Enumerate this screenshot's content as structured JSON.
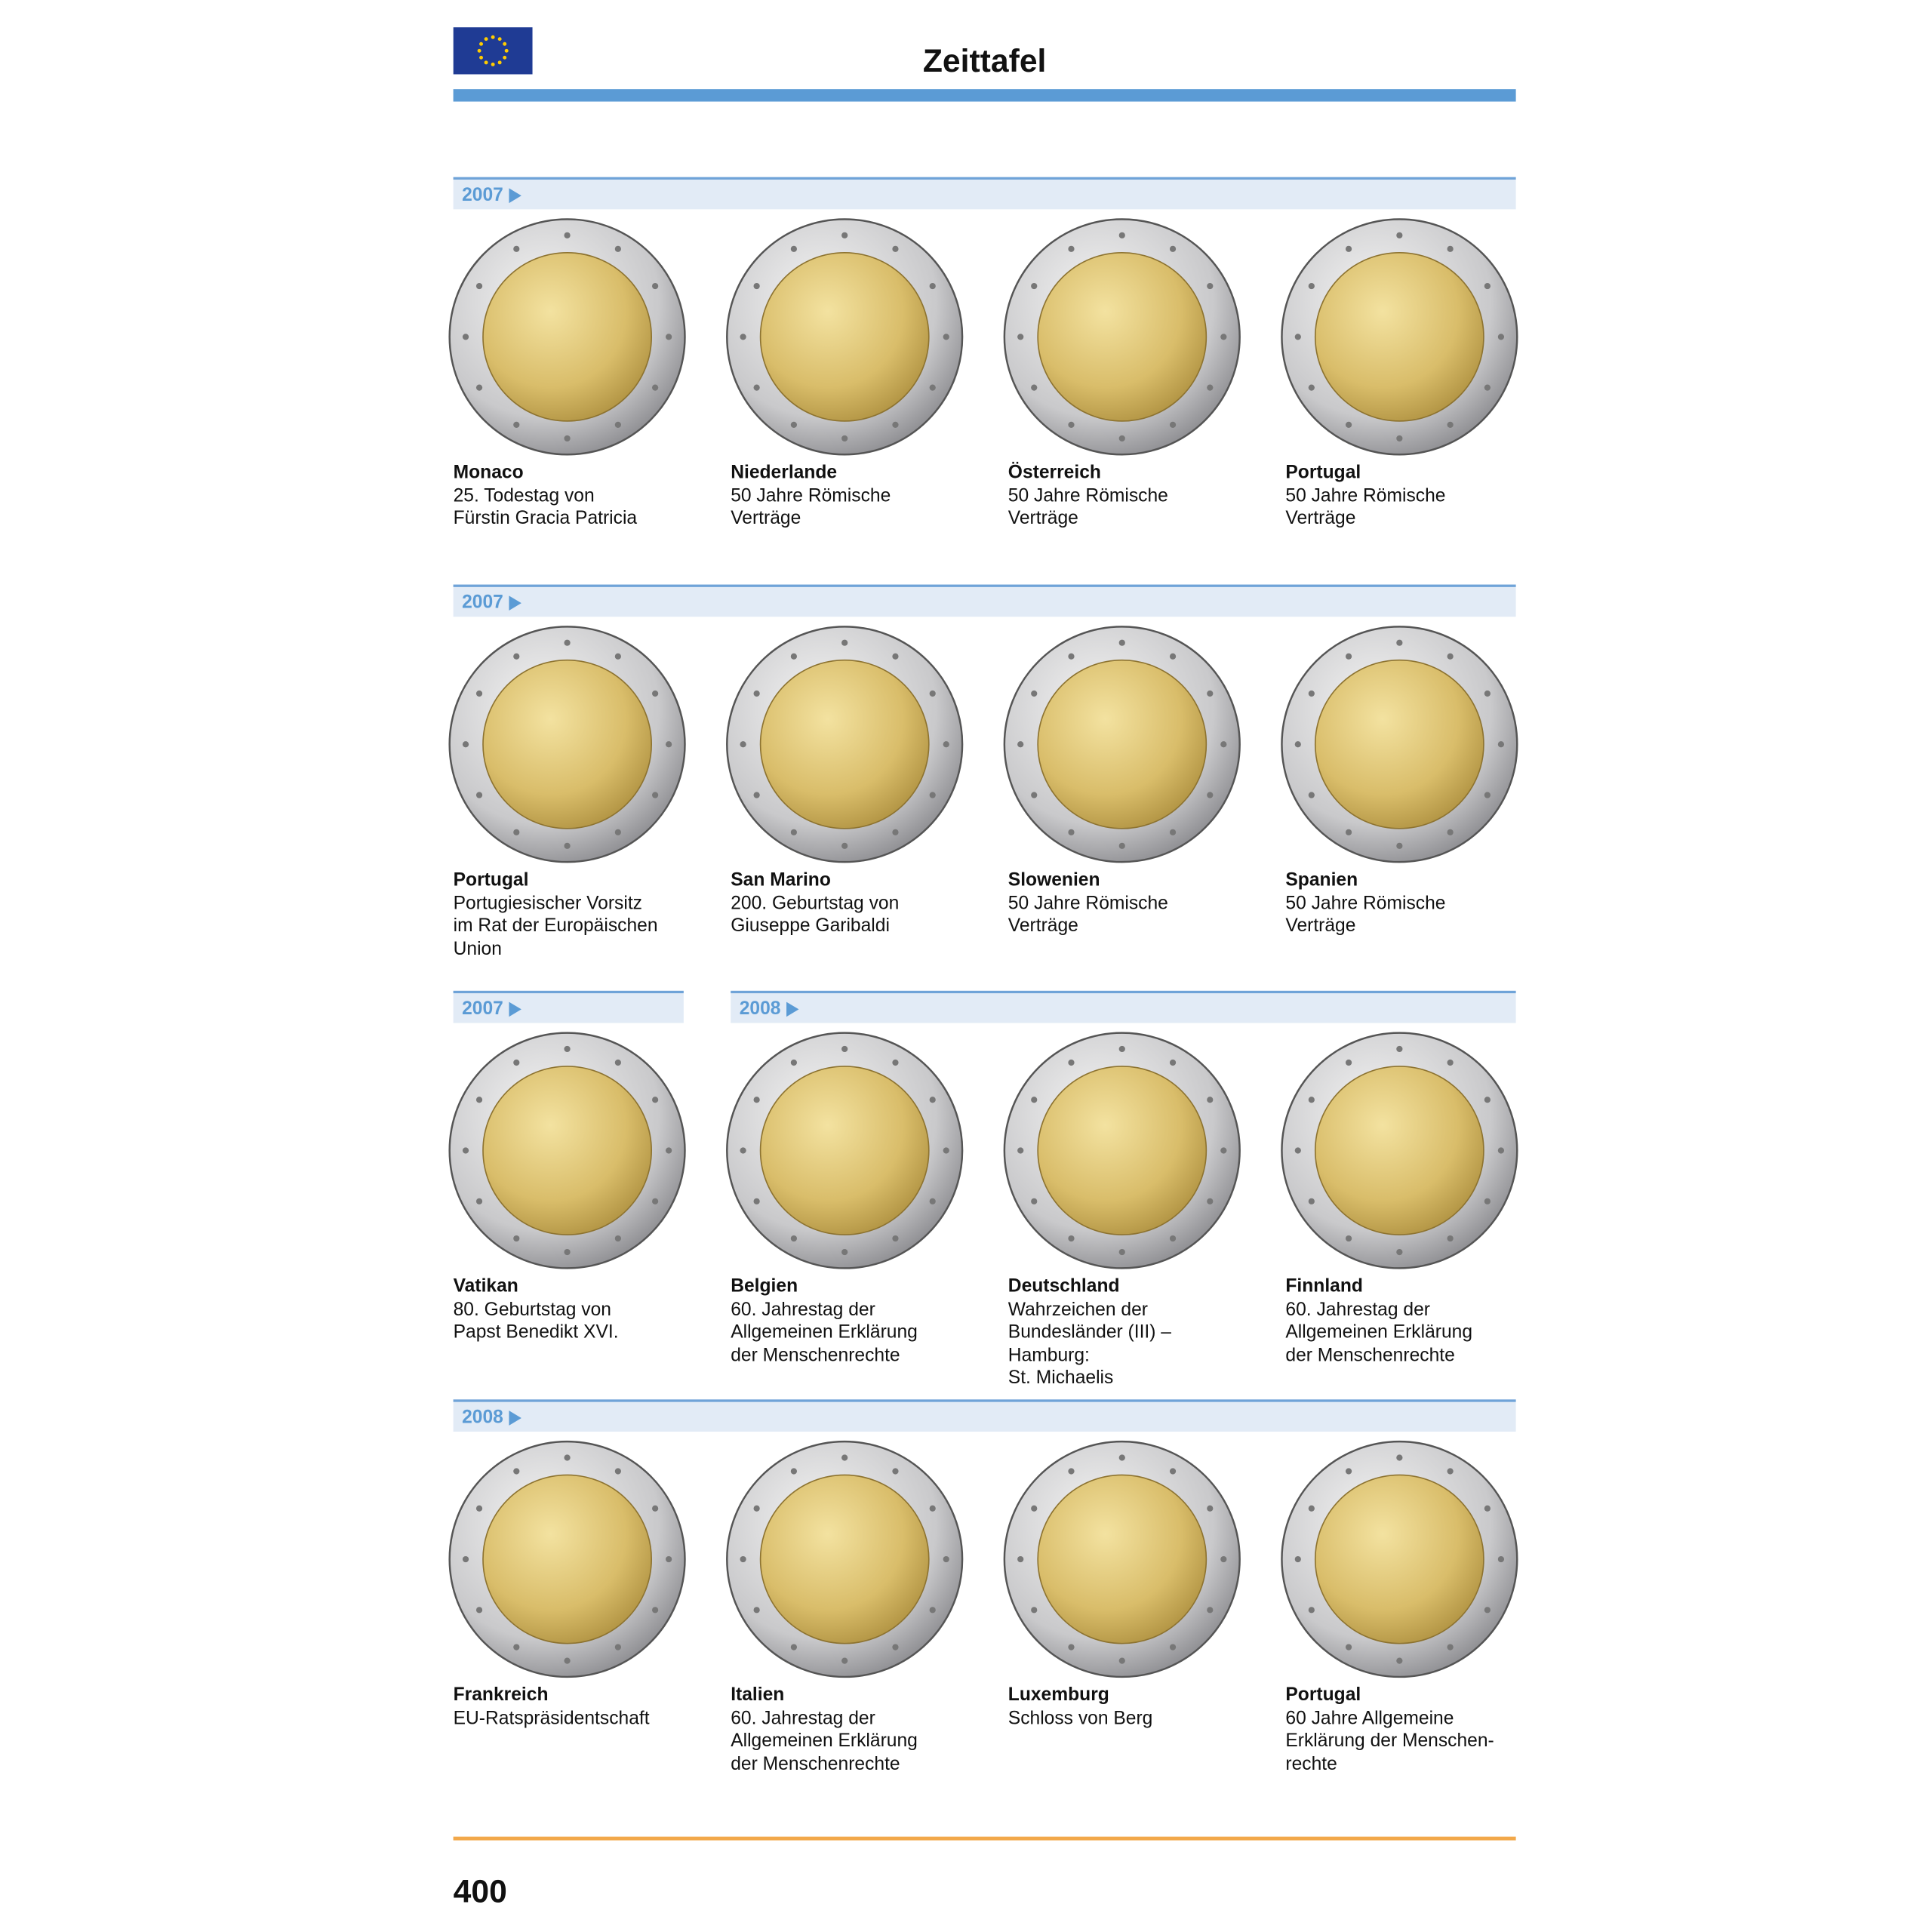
{
  "header": {
    "title": "Zeittafel"
  },
  "rows": [
    {
      "sections": [
        {
          "year": "2007",
          "items": [
            {
              "country": "Monaco",
              "description": [
                "25. Todestag von",
                "Fürstin Gracia Patricia"
              ]
            },
            {
              "country": "Niederlande",
              "description": [
                "50 Jahre Römische",
                "Verträge"
              ]
            },
            {
              "country": "Österreich",
              "description": [
                "50 Jahre Römische",
                "Verträge"
              ]
            },
            {
              "country": "Portugal",
              "description": [
                "50 Jahre Römische",
                "Verträge"
              ]
            }
          ]
        }
      ]
    },
    {
      "sections": [
        {
          "year": "2007",
          "items": [
            {
              "country": "Portugal",
              "description": [
                "Portugiesischer Vorsitz",
                "im Rat der Europäischen",
                "Union"
              ]
            },
            {
              "country": "San Marino",
              "description": [
                "200. Geburtstag von",
                "Giuseppe Garibaldi"
              ]
            },
            {
              "country": "Slowenien",
              "description": [
                "50 Jahre Römische",
                "Verträge"
              ]
            },
            {
              "country": "Spanien",
              "description": [
                "50 Jahre Römische",
                "Verträge"
              ]
            }
          ]
        }
      ]
    },
    {
      "sections": [
        {
          "year": "2007",
          "items": [
            {
              "country": "Vatikan",
              "description": [
                "80. Geburtstag von",
                "Papst Benedikt XVI."
              ]
            }
          ]
        },
        {
          "year": "2008",
          "items": [
            {
              "country": "Belgien",
              "description": [
                "60. Jahrestag der",
                "Allgemeinen Erklärung",
                "der Menschenrechte"
              ]
            },
            {
              "country": "Deutschland",
              "description": [
                "Wahrzeichen der",
                "Bundesländer (III) –",
                "Hamburg:",
                "St. Michaelis"
              ]
            },
            {
              "country": "Finnland",
              "description": [
                "60. Jahrestag der",
                "Allgemeinen Erklärung",
                "der Menschenrechte"
              ]
            }
          ]
        }
      ]
    },
    {
      "sections": [
        {
          "year": "2008",
          "items": [
            {
              "country": "Frankreich",
              "description": [
                "EU-Ratspräsidentschaft"
              ]
            },
            {
              "country": "Italien",
              "description": [
                "60. Jahrestag der",
                "Allgemeinen Erklärung",
                "der Menschenrechte"
              ]
            },
            {
              "country": "Luxemburg",
              "description": [
                "Schloss von Berg"
              ]
            },
            {
              "country": "Portugal",
              "description": [
                "60 Jahre Allgemeine",
                "Erklärung der Menschen-",
                "rechte"
              ]
            }
          ]
        }
      ]
    }
  ],
  "footer": {
    "page_number": "400"
  }
}
